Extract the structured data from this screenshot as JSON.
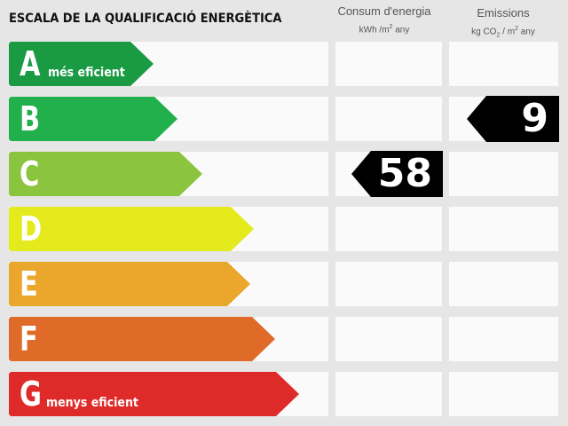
{
  "title": "ESCALA DE LA QUALIFICACIÓ ENERGÈTICA",
  "columns": {
    "consum": {
      "label": "Consum d'energia",
      "unit": "kWh /m² any",
      "unit_main": "kWh /m",
      "unit_sup": "2",
      "unit_tail": " any"
    },
    "emissions": {
      "label": "Emissions",
      "unit": "kg CO₂ / m² any",
      "unit_a": "kg CO",
      "unit_sub": "2",
      "unit_b": " / m",
      "unit_sup": "2",
      "unit_tail": " any"
    }
  },
  "ratings": [
    {
      "letter": "A",
      "label": "més eficient",
      "color": "#1a9a43"
    },
    {
      "letter": "B",
      "label": "",
      "color": "#21b04b"
    },
    {
      "letter": "C",
      "label": "",
      "color": "#8bc53f"
    },
    {
      "letter": "D",
      "label": "",
      "color": "#e4ea1b"
    },
    {
      "letter": "E",
      "label": "",
      "color": "#eaa72b"
    },
    {
      "letter": "F",
      "label": "",
      "color": "#e06a28"
    },
    {
      "letter": "G",
      "label": "menys eficient",
      "color": "#de2b2a"
    }
  ],
  "consum_value": {
    "rating": "C",
    "value": "58"
  },
  "emissions_value": {
    "rating": "B",
    "value": "9"
  }
}
